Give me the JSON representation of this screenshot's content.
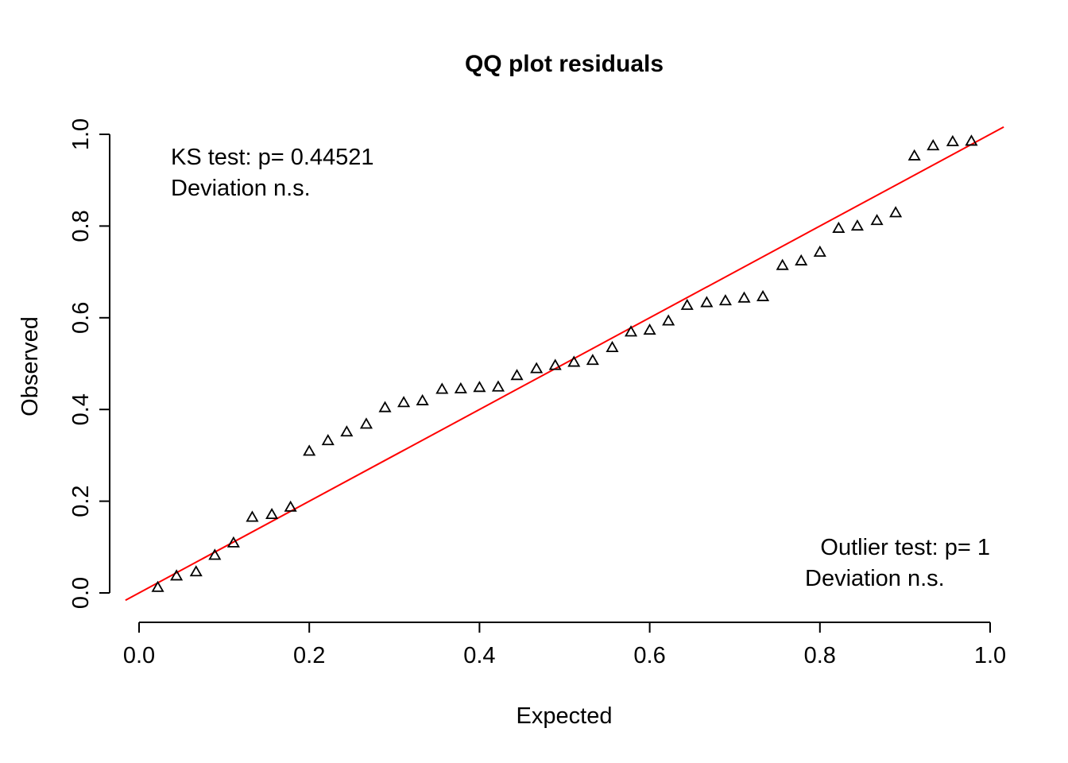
{
  "chart_data": {
    "type": "scatter",
    "title": "QQ plot residuals",
    "xlabel": "Expected",
    "ylabel": "Observed",
    "xlim": [
      0.0,
      1.0
    ],
    "ylim": [
      0.0,
      1.0
    ],
    "grid": false,
    "x_ticks": [
      "0.0",
      "0.2",
      "0.4",
      "0.6",
      "0.8",
      "1.0"
    ],
    "y_ticks": [
      "0.0",
      "0.2",
      "0.4",
      "0.6",
      "0.8",
      "1.0"
    ],
    "marker": "triangle-open",
    "point_color": "#000000",
    "reference_line": {
      "slope": 1,
      "intercept": 0,
      "color": "#ff0000"
    },
    "series": [
      {
        "x": [
          0.022,
          0.044,
          0.067,
          0.089,
          0.111,
          0.133,
          0.156,
          0.178,
          0.2,
          0.222,
          0.244,
          0.267,
          0.289,
          0.311,
          0.333,
          0.356,
          0.378,
          0.4,
          0.422,
          0.444,
          0.467,
          0.489,
          0.511,
          0.533,
          0.556,
          0.578,
          0.6,
          0.622,
          0.644,
          0.667,
          0.689,
          0.711,
          0.733,
          0.756,
          0.778,
          0.8,
          0.822,
          0.844,
          0.867,
          0.889,
          0.911,
          0.933,
          0.956,
          0.978
        ],
        "y": [
          0.011,
          0.036,
          0.045,
          0.081,
          0.108,
          0.164,
          0.17,
          0.186,
          0.308,
          0.331,
          0.35,
          0.367,
          0.403,
          0.414,
          0.418,
          0.443,
          0.444,
          0.447,
          0.448,
          0.473,
          0.488,
          0.495,
          0.502,
          0.506,
          0.534,
          0.568,
          0.572,
          0.592,
          0.626,
          0.632,
          0.636,
          0.642,
          0.645,
          0.713,
          0.723,
          0.742,
          0.794,
          0.799,
          0.811,
          0.828,
          0.952,
          0.974,
          0.983,
          0.984
        ]
      }
    ],
    "annotations": {
      "ks_line1": "KS test: p= 0.44521",
      "ks_line2": "Deviation  n.s.",
      "outlier_line1": "Outlier test: p= 1",
      "outlier_line2": "Deviation  n.s."
    }
  }
}
